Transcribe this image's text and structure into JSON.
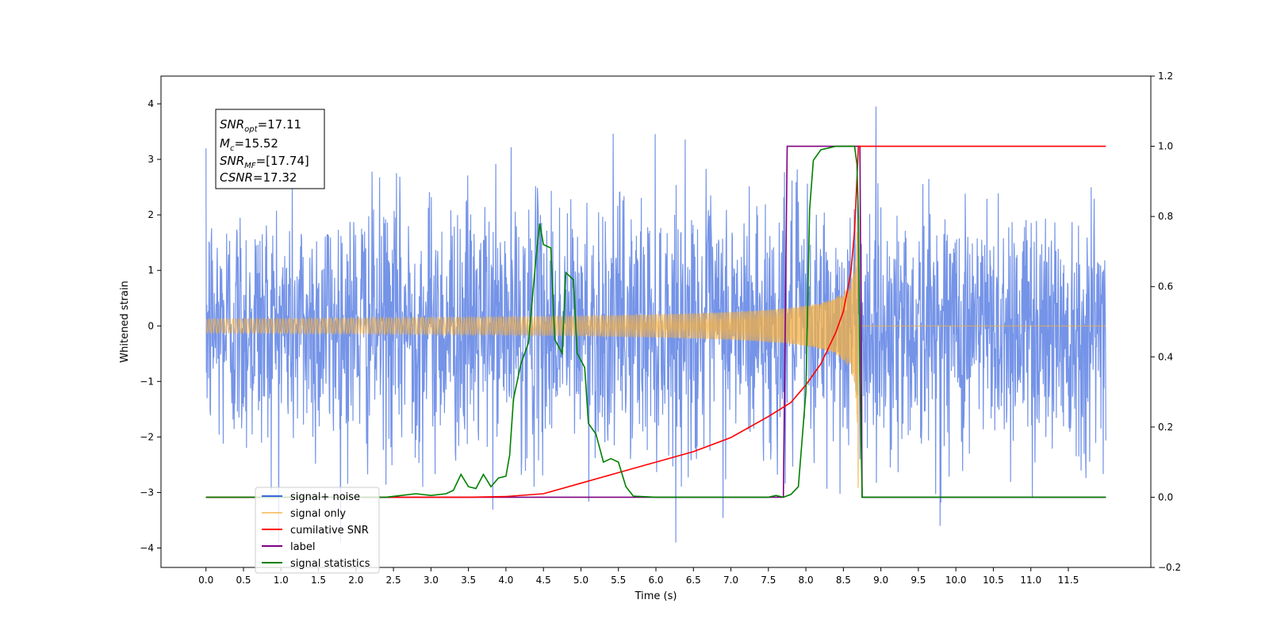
{
  "chart_data": {
    "type": "line",
    "xlabel": "Time (s)",
    "ylabel": "Whitened strain",
    "xlim": [
      -0.6,
      12.6
    ],
    "ylim_left": [
      -4.35,
      4.5
    ],
    "ylim_right": [
      -0.2,
      1.2
    ],
    "x_ticks": [
      "0.0",
      "0.5",
      "1.0",
      "1.5",
      "2.0",
      "2.5",
      "3.0",
      "3.5",
      "4.0",
      "4.5",
      "5.0",
      "5.5",
      "6.0",
      "6.5",
      "7.0",
      "7.5",
      "8.0",
      "8.5",
      "9.0",
      "9.5",
      "10.0",
      "10.5",
      "11.0",
      "11.5"
    ],
    "y_ticks_left": [
      "−4",
      "−3",
      "−2",
      "−1",
      "0",
      "1",
      "2",
      "3",
      "4"
    ],
    "y_ticks_right": [
      "−0.2",
      "0.0",
      "0.2",
      "0.4",
      "0.6",
      "0.8",
      "1.0",
      "1.2"
    ],
    "grid": false,
    "legend": {
      "placement": "lower-left",
      "entries": [
        "signal+ noise",
        "signal only",
        "cumilative SNR",
        "label",
        "signal statistics"
      ]
    },
    "annotation": {
      "lines": [
        {
          "base": "SNR",
          "sub": "opt",
          "value": "=17.11"
        },
        {
          "base": "M",
          "sub": "c",
          "value": "=15.52"
        },
        {
          "base": "SNR",
          "sub": "MF",
          "value": "=[17.74]"
        },
        {
          "base": "CSNR",
          "sub": "",
          "value": "=17.32"
        }
      ]
    },
    "series": [
      {
        "name": "signal+ noise",
        "axis": "left",
        "color": "#3b66de",
        "description_values": {
          "t_start": 0.0,
          "t_end": 12.0,
          "typical_amplitude": 1.6,
          "max": 4.1,
          "min": -3.9
        }
      },
      {
        "name": "signal only",
        "axis": "left",
        "color": "#f5b041",
        "chirp": {
          "t_start": 0.0,
          "t_merger": 8.7,
          "peak_amplitude": 3.2
        }
      },
      {
        "name": "cumilative SNR",
        "axis": "right",
        "color": "#ff0000",
        "points": [
          [
            0.0,
            0.0
          ],
          [
            3.5,
            0.0
          ],
          [
            4.0,
            0.002
          ],
          [
            4.5,
            0.01
          ],
          [
            5.0,
            0.04
          ],
          [
            5.5,
            0.07
          ],
          [
            6.0,
            0.1
          ],
          [
            6.5,
            0.13
          ],
          [
            7.0,
            0.17
          ],
          [
            7.5,
            0.23
          ],
          [
            7.8,
            0.27
          ],
          [
            8.0,
            0.32
          ],
          [
            8.2,
            0.38
          ],
          [
            8.4,
            0.47
          ],
          [
            8.5,
            0.53
          ],
          [
            8.6,
            0.64
          ],
          [
            8.65,
            0.76
          ],
          [
            8.69,
            0.95
          ],
          [
            8.7,
            1.0
          ],
          [
            12.0,
            1.0
          ]
        ]
      },
      {
        "name": "label",
        "axis": "right",
        "color": "#800080",
        "points": [
          [
            0.0,
            0.0
          ],
          [
            7.7,
            0.0
          ],
          [
            7.75,
            1.0
          ],
          [
            8.72,
            1.0
          ],
          [
            8.75,
            0.0
          ],
          [
            12.0,
            0.0
          ]
        ]
      },
      {
        "name": "signal statistics",
        "axis": "right",
        "color": "#008000",
        "points": [
          [
            0.0,
            0.0
          ],
          [
            2.4,
            0.0
          ],
          [
            2.8,
            0.01
          ],
          [
            3.0,
            0.005
          ],
          [
            3.2,
            0.01
          ],
          [
            3.3,
            0.02
          ],
          [
            3.4,
            0.065
          ],
          [
            3.5,
            0.03
          ],
          [
            3.6,
            0.025
          ],
          [
            3.7,
            0.065
          ],
          [
            3.8,
            0.03
          ],
          [
            3.9,
            0.055
          ],
          [
            4.0,
            0.06
          ],
          [
            4.05,
            0.12
          ],
          [
            4.1,
            0.28
          ],
          [
            4.2,
            0.38
          ],
          [
            4.3,
            0.44
          ],
          [
            4.4,
            0.68
          ],
          [
            4.45,
            0.78
          ],
          [
            4.5,
            0.72
          ],
          [
            4.6,
            0.71
          ],
          [
            4.65,
            0.45
          ],
          [
            4.75,
            0.41
          ],
          [
            4.8,
            0.64
          ],
          [
            4.9,
            0.62
          ],
          [
            4.95,
            0.41
          ],
          [
            5.05,
            0.37
          ],
          [
            5.1,
            0.21
          ],
          [
            5.2,
            0.18
          ],
          [
            5.3,
            0.1
          ],
          [
            5.4,
            0.11
          ],
          [
            5.5,
            0.1
          ],
          [
            5.6,
            0.03
          ],
          [
            5.7,
            0.003
          ],
          [
            6.0,
            0.0
          ],
          [
            7.5,
            0.0
          ],
          [
            7.6,
            0.005
          ],
          [
            7.7,
            0.0
          ],
          [
            7.8,
            0.008
          ],
          [
            7.9,
            0.03
          ],
          [
            8.0,
            0.3
          ],
          [
            8.05,
            0.82
          ],
          [
            8.1,
            0.96
          ],
          [
            8.2,
            0.99
          ],
          [
            8.4,
            1.0
          ],
          [
            8.65,
            1.0
          ],
          [
            8.68,
            0.95
          ],
          [
            8.7,
            0.8
          ],
          [
            8.72,
            0.35
          ],
          [
            8.75,
            0.0
          ],
          [
            12.0,
            0.0
          ]
        ]
      }
    ]
  }
}
